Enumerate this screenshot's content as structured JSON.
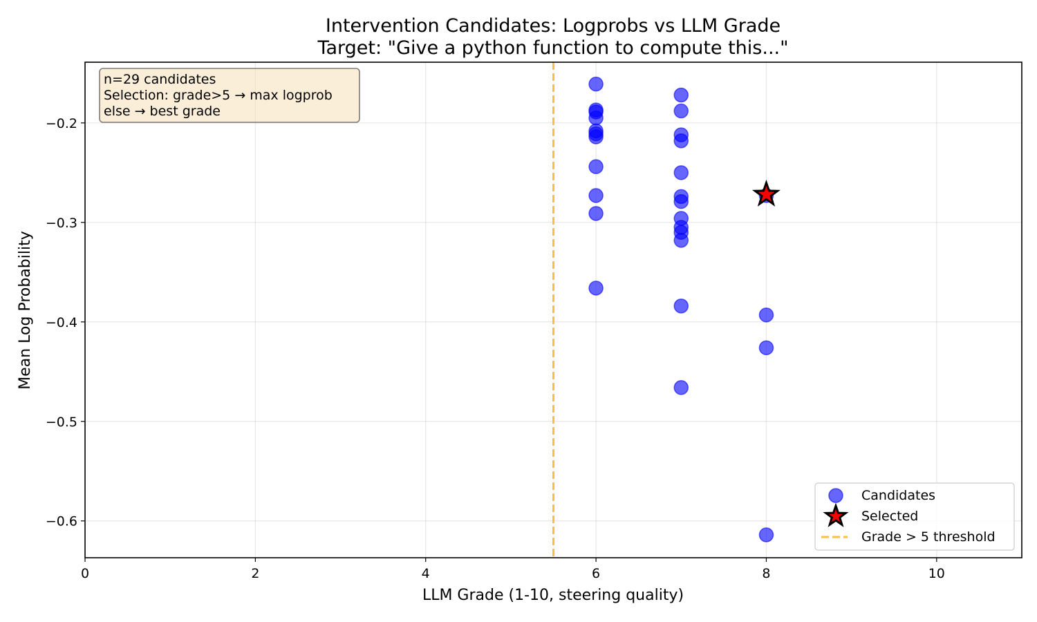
{
  "chart_data": {
    "type": "scatter",
    "title": "Intervention Candidates: Logprobs vs LLM Grade",
    "subtitle": "Target: \"Give a python function to compute this...\"",
    "xlabel": "LLM Grade (1-10, steering quality)",
    "ylabel": "Mean Log Probability",
    "xlim": [
      0,
      11
    ],
    "ylim": [
      -0.637,
      -0.139
    ],
    "xticks": [
      0,
      2,
      4,
      6,
      8,
      10
    ],
    "xtick_labels": [
      "0",
      "2",
      "4",
      "6",
      "8",
      "10"
    ],
    "yticks": [
      -0.2,
      -0.3,
      -0.4,
      -0.5,
      -0.6
    ],
    "ytick_labels": [
      "−0.2",
      "−0.3",
      "−0.4",
      "−0.5",
      "−0.6"
    ],
    "grid": true,
    "legend_position": "lower-right",
    "series": [
      {
        "name": "Candidates",
        "color": "#0000ff",
        "points": [
          {
            "x": 6,
            "y": -0.161
          },
          {
            "x": 6,
            "y": -0.187
          },
          {
            "x": 6,
            "y": -0.189
          },
          {
            "x": 6,
            "y": -0.195
          },
          {
            "x": 6,
            "y": -0.208
          },
          {
            "x": 6,
            "y": -0.211
          },
          {
            "x": 6,
            "y": -0.214
          },
          {
            "x": 6,
            "y": -0.244
          },
          {
            "x": 6,
            "y": -0.273
          },
          {
            "x": 6,
            "y": -0.291
          },
          {
            "x": 6,
            "y": -0.366
          },
          {
            "x": 7,
            "y": -0.172
          },
          {
            "x": 7,
            "y": -0.188
          },
          {
            "x": 7,
            "y": -0.212
          },
          {
            "x": 7,
            "y": -0.218
          },
          {
            "x": 7,
            "y": -0.25
          },
          {
            "x": 7,
            "y": -0.274
          },
          {
            "x": 7,
            "y": -0.279
          },
          {
            "x": 7,
            "y": -0.296
          },
          {
            "x": 7,
            "y": -0.305
          },
          {
            "x": 7,
            "y": -0.31
          },
          {
            "x": 7,
            "y": -0.318
          },
          {
            "x": 7,
            "y": -0.384
          },
          {
            "x": 7,
            "y": -0.466
          },
          {
            "x": 8,
            "y": -0.273
          },
          {
            "x": 8,
            "y": -0.393
          },
          {
            "x": 8,
            "y": -0.426
          },
          {
            "x": 8,
            "y": -0.614
          }
        ]
      },
      {
        "name": "Selected",
        "color": "#ff0000",
        "points": [
          {
            "x": 8,
            "y": -0.272
          }
        ]
      }
    ],
    "threshold": {
      "name": "Grade > 5 threshold",
      "x": 5.5,
      "color": "#ffbf40"
    },
    "annotation_lines": [
      "n=29 candidates",
      "Selection: grade>5 → max logprob",
      "else → best grade"
    ]
  }
}
